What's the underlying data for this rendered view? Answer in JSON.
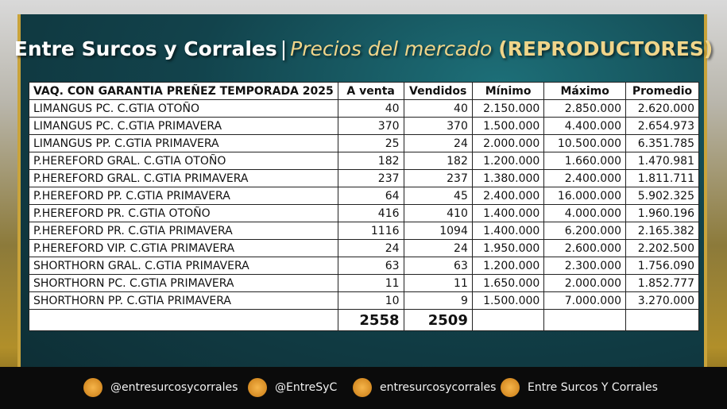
{
  "header": {
    "brand": "Entre Surcos y Corrales",
    "separator": "|",
    "subtitle": "Precios del mercado",
    "tag": "(REPRODUCTORES)"
  },
  "table": {
    "columns": [
      "VAQ. CON GARANTIA PREÑEZ  TEMPORADA 2025",
      "A venta",
      "Vendidos",
      "Mínimo",
      "Máximo",
      "Promedio"
    ],
    "rows": [
      [
        "LIMANGUS PC. C.GTIA OTOÑO",
        "40",
        "40",
        "2.150.000",
        "2.850.000",
        "2.620.000"
      ],
      [
        "LIMANGUS PC. C.GTIA PRIMAVERA",
        "370",
        "370",
        "1.500.000",
        "4.400.000",
        "2.654.973"
      ],
      [
        "LIMANGUS PP. C.GTIA PRIMAVERA",
        "25",
        "24",
        "2.000.000",
        "10.500.000",
        "6.351.785"
      ],
      [
        "P.HEREFORD GRAL. C.GTIA OTOÑO",
        "182",
        "182",
        "1.200.000",
        "1.660.000",
        "1.470.981"
      ],
      [
        "P.HEREFORD GRAL. C.GTIA PRIMAVERA",
        "237",
        "237",
        "1.380.000",
        "2.400.000",
        "1.811.711"
      ],
      [
        "P.HEREFORD PP. C.GTIA PRIMAVERA",
        "64",
        "45",
        "2.400.000",
        "16.000.000",
        "5.902.325"
      ],
      [
        "P.HEREFORD PR. C.GTIA OTOÑO",
        "416",
        "410",
        "1.400.000",
        "4.000.000",
        "1.960.196"
      ],
      [
        "P.HEREFORD PR. C.GTIA PRIMAVERA",
        "1116",
        "1094",
        "1.400.000",
        "6.200.000",
        "2.165.382"
      ],
      [
        "P.HEREFORD VIP. C.GTIA PRIMAVERA",
        "24",
        "24",
        "1.950.000",
        "2.600.000",
        "2.202.500"
      ],
      [
        "SHORTHORN GRAL. C.GTIA PRIMAVERA",
        "63",
        "63",
        "1.200.000",
        "2.300.000",
        "1.756.090"
      ],
      [
        "SHORTHORN PC. C.GTIA PRIMAVERA",
        "11",
        "11",
        "1.650.000",
        "2.000.000",
        "1.852.777"
      ],
      [
        "SHORTHORN PP. C.GTIA PRIMAVERA",
        "10",
        "9",
        "1.500.000",
        "7.000.000",
        "3.270.000"
      ]
    ],
    "totals": {
      "a_venta": "2558",
      "vendidos": "2509"
    }
  },
  "footer": {
    "instagram": "@entresurcosycorrales",
    "twitter": "@EntreSyC",
    "facebook": "entresurcosycorrales",
    "youtube": "Entre Surcos Y Corrales"
  }
}
